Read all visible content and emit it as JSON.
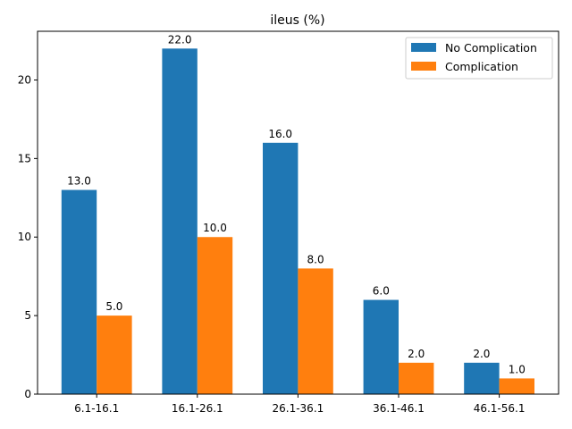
{
  "chart_data": {
    "type": "bar",
    "title": "ileus (%)",
    "xlabel": "",
    "ylabel": "",
    "categories": [
      "6.1-16.1",
      "16.1-26.1",
      "26.1-36.1",
      "36.1-46.1",
      "46.1-56.1"
    ],
    "series": [
      {
        "name": "No Complication",
        "values": [
          13.0,
          22.0,
          16.0,
          6.0,
          2.0
        ],
        "color": "#1f77b4"
      },
      {
        "name": "Complication",
        "values": [
          5.0,
          10.0,
          8.0,
          2.0,
          1.0
        ],
        "color": "#ff7f0e"
      }
    ],
    "data_labels": [
      [
        "13.0",
        "22.0",
        "16.0",
        "6.0",
        "2.0"
      ],
      [
        "5.0",
        "10.0",
        "8.0",
        "2.0",
        "1.0"
      ]
    ],
    "ylim": [
      0,
      23.1
    ],
    "yticks": [
      "0",
      "5",
      "10",
      "15",
      "20"
    ],
    "grid": false,
    "legend_position": "top-right"
  }
}
